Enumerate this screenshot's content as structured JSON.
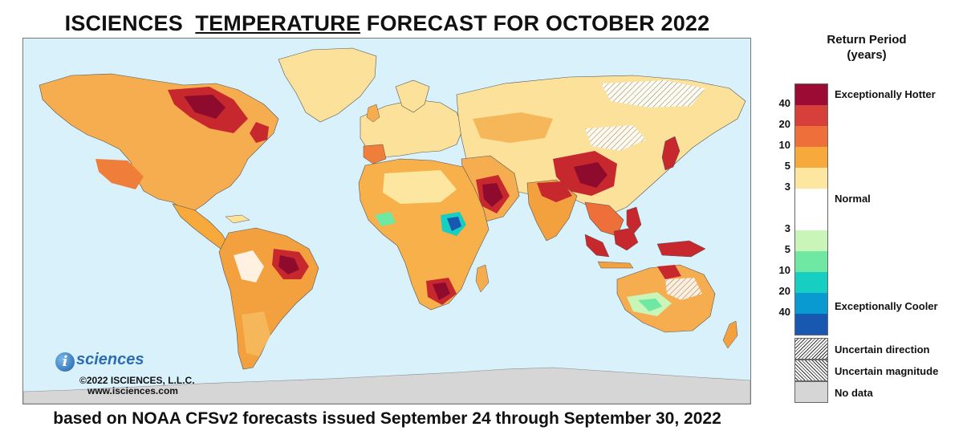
{
  "header": {
    "title_pre": "ISCIENCES",
    "title_underlined": "TEMPERATURE",
    "title_post": "FORECAST FOR OCTOBER 2022"
  },
  "footer": {
    "source_note": "based on NOAA CFSv2 forecasts issued September 24 through September 30, 2022"
  },
  "logo": {
    "mark": "i",
    "word": "sciences",
    "copyright": "©2022 ISCIENCES, L.L.C.",
    "url": "www.isciences.com"
  },
  "legend": {
    "title_line1": "Return Period",
    "title_line2": "(years)",
    "hotter_ticks": [
      "40",
      "20",
      "10",
      "5",
      "3"
    ],
    "cooler_ticks": [
      "3",
      "5",
      "10",
      "20",
      "40"
    ],
    "hotter_colors": [
      "#9b0b34",
      "#d73f3a",
      "#ef6f3a",
      "#f7a93c",
      "#fde7a0"
    ],
    "normal_color": "#ffffff",
    "cooler_colors": [
      "#c9f5b9",
      "#6ee8a2",
      "#16cfc2",
      "#0a9ad2",
      "#1858b0"
    ],
    "label_hot": "Exceptionally Hotter",
    "label_normal": "Normal",
    "label_cool": "Exceptionally Cooler",
    "label_uncertain_direction": "Uncertain direction",
    "label_uncertain_magnitude": "Uncertain magnitude",
    "label_no_data": "No data"
  },
  "map": {
    "ocean_color": "#d9f1fa",
    "no_data_color": "#d6d6d6"
  }
}
